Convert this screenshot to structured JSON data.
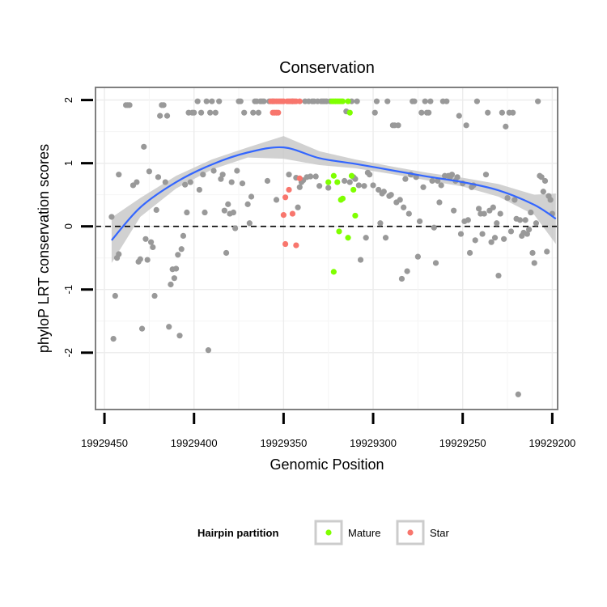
{
  "chart_data": {
    "type": "scatter",
    "title": "Conservation",
    "xlabel": "Genomic Position",
    "ylabel": "phyloP LRT conservation scores",
    "xlim": [
      19929455,
      19929197
    ],
    "ylim": [
      -2.9,
      2.2
    ],
    "x_reversed": true,
    "x_ticks": [
      19929450,
      19929400,
      19929350,
      19929300,
      19929250,
      19929200
    ],
    "x_tick_labels": [
      "19929450",
      "19929400",
      "19929350",
      "19929300",
      "19929250",
      "19929200"
    ],
    "y_ticks": [
      -2,
      -1,
      0,
      1,
      2
    ],
    "y_tick_labels": [
      "-2",
      "-1",
      "0",
      "1",
      "2"
    ],
    "grid": true,
    "reference_line": {
      "y": 0,
      "style": "dashed"
    },
    "colors": {
      "Other": "#999999",
      "Mature": "#7fff00",
      "Star": "#f8766d",
      "smooth_line": "#3366ff",
      "smooth_band": "#c9c9c9",
      "panel_border": "#7f7f7f"
    },
    "legend": {
      "title": "Hairpin partition",
      "position": "bottom",
      "entries": [
        {
          "label": "Mature",
          "color": "#7fff00"
        },
        {
          "label": "Star",
          "color": "#f8766d"
        }
      ]
    },
    "smooth": {
      "x": [
        19929446,
        19929430,
        19929410,
        19929390,
        19929370,
        19929350,
        19929330,
        19929310,
        19929290,
        19929270,
        19929250,
        19929230,
        19929210,
        19929198
      ],
      "y": [
        -0.22,
        0.3,
        0.7,
        0.98,
        1.17,
        1.25,
        1.08,
        0.99,
        0.89,
        0.79,
        0.7,
        0.57,
        0.34,
        0.12
      ],
      "lower": [
        -0.58,
        0.15,
        0.6,
        0.9,
        1.09,
        1.07,
        0.97,
        0.92,
        0.83,
        0.73,
        0.63,
        0.47,
        0.18,
        -0.28
      ],
      "upper": [
        0.14,
        0.45,
        0.8,
        1.06,
        1.25,
        1.43,
        1.19,
        1.06,
        0.95,
        0.85,
        0.77,
        0.67,
        0.5,
        0.52
      ]
    },
    "series": [
      {
        "name": "Other",
        "points": [
          [
            19929446,
            0.15
          ],
          [
            19929445,
            -1.78
          ],
          [
            19929444,
            -1.1
          ],
          [
            19929443,
            -0.5
          ],
          [
            19929442,
            0.82
          ],
          [
            19929442,
            -0.44
          ],
          [
            19929438,
            1.92
          ],
          [
            19929437,
            1.92
          ],
          [
            19929436,
            1.92
          ],
          [
            19929434,
            0.65
          ],
          [
            19929432,
            0.7
          ],
          [
            19929431,
            -0.56
          ],
          [
            19929430,
            -0.52
          ],
          [
            19929429,
            -1.62
          ],
          [
            19929428,
            1.26
          ],
          [
            19929427,
            -0.2
          ],
          [
            19929426,
            -0.53
          ],
          [
            19929425,
            0.87
          ],
          [
            19929424,
            -0.25
          ],
          [
            19929423,
            -0.33
          ],
          [
            19929422,
            -1.1
          ],
          [
            19929421,
            0.26
          ],
          [
            19929420,
            0.78
          ],
          [
            19929419,
            1.75
          ],
          [
            19929418,
            1.92
          ],
          [
            19929417,
            1.92
          ],
          [
            19929416,
            0.7
          ],
          [
            19929415,
            1.75
          ],
          [
            19929414,
            -1.59
          ],
          [
            19929413,
            -0.92
          ],
          [
            19929412,
            -0.68
          ],
          [
            19929411,
            -0.82
          ],
          [
            19929410,
            -0.67
          ],
          [
            19929409,
            -0.45
          ],
          [
            19929408,
            -1.73
          ],
          [
            19929407,
            -0.36
          ],
          [
            19929406,
            -0.15
          ],
          [
            19929405,
            0.66
          ],
          [
            19929404,
            0.22
          ],
          [
            19929403,
            1.8
          ],
          [
            19929402,
            0.7
          ],
          [
            19929401,
            1.8
          ],
          [
            19929400,
            1.8
          ],
          [
            19929398,
            1.98
          ],
          [
            19929397,
            0.58
          ],
          [
            19929396,
            1.8
          ],
          [
            19929395,
            0.82
          ],
          [
            19929394,
            0.22
          ],
          [
            19929393,
            1.98
          ],
          [
            19929392,
            -1.96
          ],
          [
            19929391,
            1.8
          ],
          [
            19929390,
            1.98
          ],
          [
            19929389,
            0.88
          ],
          [
            19929388,
            1.8
          ],
          [
            19929386,
            1.98
          ],
          [
            19929385,
            0.75
          ],
          [
            19929384,
            0.82
          ],
          [
            19929383,
            0.25
          ],
          [
            19929382,
            -0.42
          ],
          [
            19929381,
            0.35
          ],
          [
            19929380,
            0.2
          ],
          [
            19929379,
            0.7
          ],
          [
            19929378,
            0.22
          ],
          [
            19929377,
            -0.03
          ],
          [
            19929376,
            0.88
          ],
          [
            19929375,
            1.98
          ],
          [
            19929374,
            1.98
          ],
          [
            19929373,
            0.68
          ],
          [
            19929372,
            1.8
          ],
          [
            19929370,
            0.35
          ],
          [
            19929369,
            0.05
          ],
          [
            19929368,
            0.47
          ],
          [
            19929367,
            1.8
          ],
          [
            19929366,
            1.98
          ],
          [
            19929365,
            1.98
          ],
          [
            19929364,
            1.8
          ],
          [
            19929363,
            1.98
          ],
          [
            19929362,
            1.98
          ],
          [
            19929361,
            1.98
          ],
          [
            19929359,
            0.72
          ],
          [
            19929358,
            1.98
          ],
          [
            19929356,
            1.98
          ],
          [
            19929354,
            0.42
          ],
          [
            19929347,
            0.82
          ],
          [
            19929345,
            1.98
          ],
          [
            19929343,
            0.77
          ],
          [
            19929342,
            0.3
          ],
          [
            19929341,
            0.62
          ],
          [
            19929340,
            0.7
          ],
          [
            19929339,
            0.73
          ],
          [
            19929338,
            1.98
          ],
          [
            19929337,
            0.78
          ],
          [
            19929336,
            1.98
          ],
          [
            19929335,
            0.79
          ],
          [
            19929334,
            1.98
          ],
          [
            19929333,
            1.98
          ],
          [
            19929332,
            0.79
          ],
          [
            19929331,
            1.98
          ],
          [
            19929330,
            0.64
          ],
          [
            19929329,
            1.98
          ],
          [
            19929328,
            1.98
          ],
          [
            19929327,
            1.98
          ],
          [
            19929326,
            1.98
          ],
          [
            19929325,
            0.61
          ],
          [
            19929324,
            1.98
          ],
          [
            19929316,
            0.72
          ],
          [
            19929315,
            1.82
          ],
          [
            19929313,
            0.7
          ],
          [
            19929312,
            1.98
          ],
          [
            19929311,
            0.78
          ],
          [
            19929310,
            0.75
          ],
          [
            19929309,
            1.98
          ],
          [
            19929308,
            0.65
          ],
          [
            19929307,
            -0.53
          ],
          [
            19929305,
            0.64
          ],
          [
            19929304,
            -0.18
          ],
          [
            19929303,
            0.85
          ],
          [
            19929302,
            0.82
          ],
          [
            19929300,
            0.65
          ],
          [
            19929299,
            1.8
          ],
          [
            19929298,
            1.98
          ],
          [
            19929297,
            0.58
          ],
          [
            19929296,
            0.05
          ],
          [
            19929295,
            0.52
          ],
          [
            19929294,
            0.55
          ],
          [
            19929293,
            -0.18
          ],
          [
            19929292,
            1.98
          ],
          [
            19929291,
            0.48
          ],
          [
            19929290,
            0.5
          ],
          [
            19929289,
            1.6
          ],
          [
            19929288,
            1.6
          ],
          [
            19929287,
            0.38
          ],
          [
            19929286,
            1.6
          ],
          [
            19929285,
            0.42
          ],
          [
            19929284,
            -0.83
          ],
          [
            19929283,
            0.3
          ],
          [
            19929282,
            0.75
          ],
          [
            19929281,
            -0.71
          ],
          [
            19929280,
            0.2
          ],
          [
            19929279,
            0.82
          ],
          [
            19929278,
            1.98
          ],
          [
            19929277,
            1.98
          ],
          [
            19929276,
            0.78
          ],
          [
            19929275,
            -0.48
          ],
          [
            19929274,
            0.08
          ],
          [
            19929273,
            1.8
          ],
          [
            19929272,
            0.62
          ],
          [
            19929271,
            1.98
          ],
          [
            19929270,
            1.8
          ],
          [
            19929269,
            1.8
          ],
          [
            19929268,
            1.98
          ],
          [
            19929267,
            0.72
          ],
          [
            19929266,
            -0.02
          ],
          [
            19929265,
            -0.58
          ],
          [
            19929264,
            0.72
          ],
          [
            19929263,
            0.38
          ],
          [
            19929262,
            0.65
          ],
          [
            19929261,
            1.98
          ],
          [
            19929260,
            0.8
          ],
          [
            19929259,
            1.98
          ],
          [
            19929258,
            0.8
          ],
          [
            19929257,
            0.78
          ],
          [
            19929256,
            0.82
          ],
          [
            19929255,
            0.25
          ],
          [
            19929254,
            0.72
          ],
          [
            19929253,
            0.78
          ],
          [
            19929252,
            1.75
          ],
          [
            19929251,
            -0.12
          ],
          [
            19929250,
            0.68
          ],
          [
            19929249,
            0.08
          ],
          [
            19929248,
            1.6
          ],
          [
            19929247,
            0.1
          ],
          [
            19929246,
            -0.42
          ],
          [
            19929245,
            0.62
          ],
          [
            19929244,
            0.65
          ],
          [
            19929243,
            -0.22
          ],
          [
            19929242,
            1.98
          ],
          [
            19929241,
            0.28
          ],
          [
            19929240,
            0.2
          ],
          [
            19929239,
            -0.12
          ],
          [
            19929238,
            0.2
          ],
          [
            19929237,
            0.82
          ],
          [
            19929236,
            1.8
          ],
          [
            19929235,
            0.25
          ],
          [
            19929234,
            -0.25
          ],
          [
            19929233,
            0.3
          ],
          [
            19929232,
            -0.18
          ],
          [
            19929231,
            0.05
          ],
          [
            19929230,
            -0.78
          ],
          [
            19929229,
            0.2
          ],
          [
            19929228,
            1.8
          ],
          [
            19929227,
            -0.2
          ],
          [
            19929226,
            1.58
          ],
          [
            19929225,
            0.45
          ],
          [
            19929224,
            1.8
          ],
          [
            19929223,
            -0.08
          ],
          [
            19929222,
            1.8
          ],
          [
            19929221,
            0.42
          ],
          [
            19929220,
            0.12
          ],
          [
            19929219,
            -2.66
          ],
          [
            19929218,
            0.1
          ],
          [
            19929217,
            -0.15
          ],
          [
            19929216,
            -0.1
          ],
          [
            19929215,
            0.1
          ],
          [
            19929214,
            -0.12
          ],
          [
            19929213,
            -0.05
          ],
          [
            19929212,
            0.22
          ],
          [
            19929211,
            -0.42
          ],
          [
            19929210,
            -0.58
          ],
          [
            19929209,
            0.05
          ],
          [
            19929208,
            1.98
          ],
          [
            19929207,
            0.8
          ],
          [
            19929206,
            0.78
          ],
          [
            19929205,
            0.55
          ],
          [
            19929204,
            0.72
          ],
          [
            19929203,
            -0.4
          ],
          [
            19929202,
            0.48
          ],
          [
            19929201,
            0.42
          ],
          [
            19929200,
            0.2
          ]
        ]
      },
      {
        "name": "Mature",
        "points": [
          [
            19929323,
            1.98
          ],
          [
            19929322,
            1.98
          ],
          [
            19929321,
            1.98
          ],
          [
            19929320,
            1.98
          ],
          [
            19929319,
            1.98
          ],
          [
            19929318,
            1.98
          ],
          [
            19929317,
            1.98
          ],
          [
            19929325,
            0.7
          ],
          [
            19929322,
            0.8
          ],
          [
            19929320,
            0.7
          ],
          [
            19929319,
            -0.08
          ],
          [
            19929318,
            0.42
          ],
          [
            19929317,
            0.44
          ],
          [
            19929314,
            -0.18
          ],
          [
            19929313,
            1.8
          ],
          [
            19929314,
            1.98
          ],
          [
            19929312,
            0.8
          ],
          [
            19929311,
            0.58
          ],
          [
            19929310,
            0.17
          ],
          [
            19929322,
            -0.72
          ]
        ]
      },
      {
        "name": "Star",
        "points": [
          [
            19929357,
            1.98
          ],
          [
            19929356,
            1.98
          ],
          [
            19929355,
            1.98
          ],
          [
            19929354,
            1.98
          ],
          [
            19929353,
            1.98
          ],
          [
            19929352,
            1.98
          ],
          [
            19929351,
            1.98
          ],
          [
            19929350,
            1.98
          ],
          [
            19929348,
            1.98
          ],
          [
            19929346,
            1.98
          ],
          [
            19929345,
            1.98
          ],
          [
            19929344,
            1.98
          ],
          [
            19929343,
            1.98
          ],
          [
            19929356,
            1.8
          ],
          [
            19929355,
            1.8
          ],
          [
            19929354,
            1.8
          ],
          [
            19929353,
            1.8
          ],
          [
            19929347,
            1.98
          ],
          [
            19929341,
            1.98
          ],
          [
            19929341,
            0.76
          ],
          [
            19929349,
            0.46
          ],
          [
            19929347,
            0.58
          ],
          [
            19929350,
            0.18
          ],
          [
            19929345,
            0.2
          ],
          [
            19929349,
            -0.28
          ],
          [
            19929343,
            -0.3
          ]
        ]
      }
    ]
  }
}
